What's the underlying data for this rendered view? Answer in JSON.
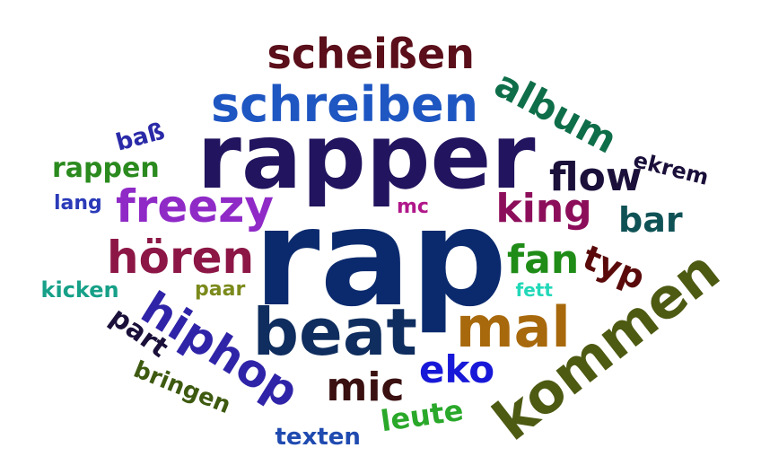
{
  "words": [
    {
      "text": "rap",
      "color": "#0b2a6e",
      "vertical": false
    },
    {
      "text": "rapper",
      "color": "#22145e",
      "vertical": false
    },
    {
      "text": "kommen",
      "color": "#4d5a12",
      "vertical": false
    },
    {
      "text": "schreiben",
      "color": "#1e56c2",
      "vertical": false
    },
    {
      "text": "beat",
      "color": "#0f2d5e",
      "vertical": false
    },
    {
      "text": "mal",
      "color": "#a8690c",
      "vertical": false
    },
    {
      "text": "hiphop",
      "color": "#2f24a8",
      "vertical": false
    },
    {
      "text": "scheißen",
      "color": "#5a0f1a",
      "vertical": false
    },
    {
      "text": "freezy",
      "color": "#8f2ac7",
      "vertical": false
    },
    {
      "text": "hören",
      "color": "#8c1746",
      "vertical": false
    },
    {
      "text": "album",
      "color": "#0f6e4a",
      "vertical": false
    },
    {
      "text": "flow",
      "color": "#1a103a",
      "vertical": false
    },
    {
      "text": "king",
      "color": "#8c0e5a",
      "vertical": false
    },
    {
      "text": "fan",
      "color": "#1f8c17",
      "vertical": false
    },
    {
      "text": "bar",
      "color": "#0f5256",
      "vertical": false
    },
    {
      "text": "eko",
      "color": "#1818d8",
      "vertical": false
    },
    {
      "text": "mic",
      "color": "#3a1010",
      "vertical": false
    },
    {
      "text": "typ",
      "color": "#5a0a0a",
      "vertical": false
    },
    {
      "text": "part",
      "color": "#1a103a",
      "vertical": false
    },
    {
      "text": "rappen",
      "color": "#2a8a1e",
      "vertical": false
    },
    {
      "text": "leute",
      "color": "#2aa82a",
      "vertical": false
    },
    {
      "text": "bringen",
      "color": "#3e5a10",
      "vertical": false
    },
    {
      "text": "texten",
      "color": "#1f4ab0",
      "vertical": false
    },
    {
      "text": "ekrem",
      "color": "#1a0f3a",
      "vertical": false
    },
    {
      "text": "baß",
      "color": "#2a2aa8",
      "vertical": false
    },
    {
      "text": "kicken",
      "color": "#16a088",
      "vertical": false
    },
    {
      "text": "paar",
      "color": "#7c8a1c",
      "vertical": false
    },
    {
      "text": "lang",
      "color": "#2a3ab8",
      "vertical": false
    },
    {
      "text": "mc",
      "color": "#b0188a",
      "vertical": false
    },
    {
      "text": "fett",
      "color": "#22d8b8",
      "vertical": false
    }
  ]
}
